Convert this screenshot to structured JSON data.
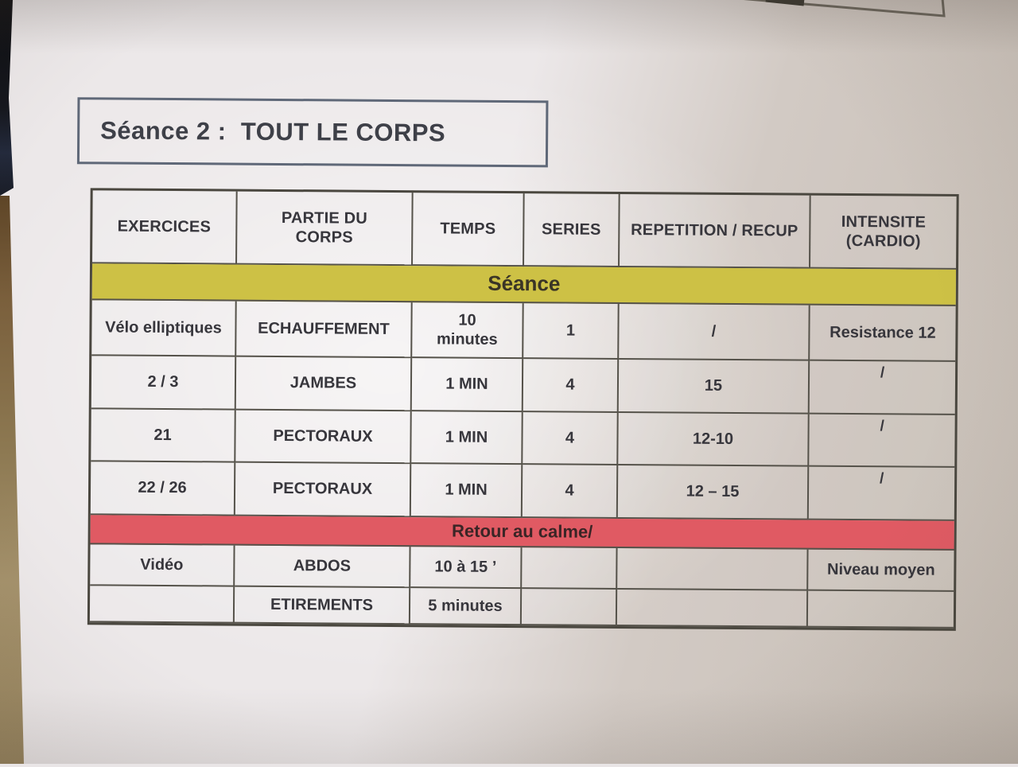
{
  "page": {
    "title": "Séance 2 :  TOUT LE CORPS"
  },
  "table": {
    "headers": [
      "EXERCICES",
      "PARTIE DU\nCORPS",
      "TEMPS",
      "SERIES",
      "REPETITION / RECUP",
      "INTENSITE\n(CARDIO)"
    ],
    "sections": [
      {
        "banner": "Séance",
        "banner_color": "#cdc145",
        "rows": [
          [
            "Vélo elliptiques",
            "ECHAUFFEMENT",
            "10\nminutes",
            "1",
            "/",
            "Resistance 12"
          ],
          [
            "2 / 3",
            "JAMBES",
            "1 MIN",
            "4",
            "15",
            "/"
          ],
          [
            "21",
            "PECTORAUX",
            "1 MIN",
            "4",
            "12-10",
            "/"
          ],
          [
            "22 / 26",
            "PECTORAUX",
            "1 MIN",
            "4",
            "12 – 15",
            "/"
          ]
        ]
      },
      {
        "banner": "Retour au calme/",
        "banner_color": "#e05a63",
        "rows": [
          [
            "Vidéo",
            "ABDOS",
            "10 à 15 ’",
            "",
            "",
            "Niveau moyen"
          ],
          [
            "",
            "ETIREMENTS",
            "5 minutes",
            "",
            "",
            ""
          ]
        ]
      }
    ]
  },
  "colors": {
    "paper": "#e9e5e6",
    "banner_seance": "#cdc145",
    "banner_retour": "#e05a63",
    "table_border": "#55524a",
    "title_border": "#5f6878",
    "text": "#37363c",
    "floor": "#8d7952",
    "dark_object": "#14161d"
  }
}
